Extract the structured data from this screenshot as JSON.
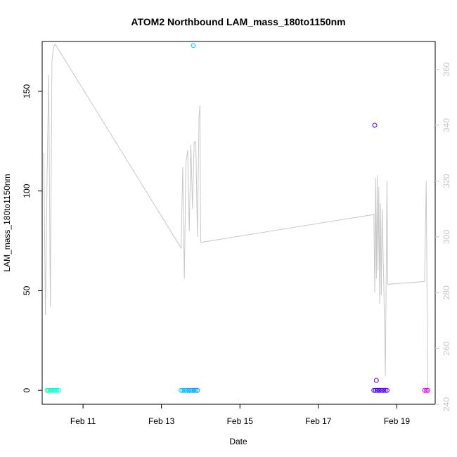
{
  "chart_data": {
    "type": "scatter",
    "title": "ATOM2 Northbound LAM_mass_180to1150nm",
    "xlabel": "Date",
    "ylabel": "LAM_mass_180to1150nm",
    "xlim": [
      "2018-02-09 23:00",
      "2018-02-19 23:30"
    ],
    "ylim": [
      -7,
      175
    ],
    "y2lim": [
      240,
      370
    ],
    "x_ticks": [
      "Feb 11",
      "Feb 13",
      "Feb 15",
      "Feb 17",
      "Feb 19"
    ],
    "y_ticks": [
      0,
      50,
      100,
      150
    ],
    "y2_ticks": [
      240,
      260,
      280,
      300,
      320,
      340,
      360
    ],
    "grid": false,
    "series": [
      {
        "kind": "points",
        "axis": "left",
        "points": [
          {
            "x": "2018-02-10 02:00",
            "y": 0,
            "color": "#00ffb0"
          },
          {
            "x": "2018-02-10 03:00",
            "y": 0,
            "color": "#00ffb8"
          },
          {
            "x": "2018-02-10 04:00",
            "y": 0,
            "color": "#00ffc0"
          },
          {
            "x": "2018-02-10 05:00",
            "y": 0,
            "color": "#00ffc8"
          },
          {
            "x": "2018-02-10 06:00",
            "y": 0,
            "color": "#00ffd0"
          },
          {
            "x": "2018-02-10 07:00",
            "y": 0,
            "color": "#00ffd8"
          },
          {
            "x": "2018-02-10 08:00",
            "y": 0,
            "color": "#00ffe0"
          },
          {
            "x": "2018-02-10 09:00",
            "y": 0,
            "color": "#00ffe8"
          },
          {
            "x": "2018-02-13 12:00",
            "y": 0,
            "color": "#00c8ff"
          },
          {
            "x": "2018-02-13 13:00",
            "y": 0,
            "color": "#00c4ff"
          },
          {
            "x": "2018-02-13 14:00",
            "y": 0,
            "color": "#00c0ff"
          },
          {
            "x": "2018-02-13 15:00",
            "y": 0,
            "color": "#00bcff"
          },
          {
            "x": "2018-02-13 16:00",
            "y": 0,
            "color": "#00b8ff"
          },
          {
            "x": "2018-02-13 17:00",
            "y": 0,
            "color": "#00b4ff"
          },
          {
            "x": "2018-02-13 18:00",
            "y": 0,
            "color": "#00b0ff"
          },
          {
            "x": "2018-02-13 19:00",
            "y": 0,
            "color": "#00acff"
          },
          {
            "x": "2018-02-13 20:00",
            "y": 0,
            "color": "#00a8ff"
          },
          {
            "x": "2018-02-13 21:00",
            "y": 0,
            "color": "#00a4ff"
          },
          {
            "x": "2018-02-13 22:00",
            "y": 0,
            "color": "#00a0ff"
          },
          {
            "x": "2018-02-13 19:30",
            "y": 173,
            "color": "#00c8ff"
          },
          {
            "x": "2018-02-18 10:00",
            "y": 0,
            "color": "#4000ff"
          },
          {
            "x": "2018-02-18 11:00",
            "y": 0,
            "color": "#4400ff"
          },
          {
            "x": "2018-02-18 12:00",
            "y": 0,
            "color": "#4800ff"
          },
          {
            "x": "2018-02-18 13:00",
            "y": 0,
            "color": "#4c00ff"
          },
          {
            "x": "2018-02-18 14:00",
            "y": 0,
            "color": "#5000ff"
          },
          {
            "x": "2018-02-18 15:00",
            "y": 0,
            "color": "#5400ff"
          },
          {
            "x": "2018-02-18 16:00",
            "y": 0,
            "color": "#5800ff"
          },
          {
            "x": "2018-02-18 17:00",
            "y": 0,
            "color": "#5c00ff"
          },
          {
            "x": "2018-02-18 18:00",
            "y": 0,
            "color": "#6000ff"
          },
          {
            "x": "2018-02-18 10:30",
            "y": 133,
            "color": "#5000ff"
          },
          {
            "x": "2018-02-18 11:30",
            "y": 5,
            "color": "#6400ff"
          },
          {
            "x": "2018-02-19 17:00",
            "y": 0,
            "color": "#ff00ff"
          },
          {
            "x": "2018-02-19 18:00",
            "y": 0,
            "color": "#f000ff"
          },
          {
            "x": "2018-02-19 19:00",
            "y": 0,
            "color": "#e000ff"
          }
        ]
      },
      {
        "kind": "line",
        "axis": "right",
        "color": "#c8c8c8",
        "points": [
          {
            "x": "2018-02-10 00:00",
            "y": 330
          },
          {
            "x": "2018-02-10 01:00",
            "y": 272
          },
          {
            "x": "2018-02-10 02:00",
            "y": 322
          },
          {
            "x": "2018-02-10 03:00",
            "y": 358
          },
          {
            "x": "2018-02-10 04:00",
            "y": 275
          },
          {
            "x": "2018-02-10 05:00",
            "y": 363
          },
          {
            "x": "2018-02-10 06:00",
            "y": 368
          },
          {
            "x": "2018-02-10 07:00",
            "y": 369
          },
          {
            "x": "2018-02-13 12:00",
            "y": 296
          },
          {
            "x": "2018-02-13 13:00",
            "y": 325
          },
          {
            "x": "2018-02-13 14:00",
            "y": 285
          },
          {
            "x": "2018-02-13 15:00",
            "y": 327
          },
          {
            "x": "2018-02-13 16:00",
            "y": 331
          },
          {
            "x": "2018-02-13 17:00",
            "y": 302
          },
          {
            "x": "2018-02-13 18:00",
            "y": 333
          },
          {
            "x": "2018-02-13 19:00",
            "y": 310
          },
          {
            "x": "2018-02-13 20:00",
            "y": 334
          },
          {
            "x": "2018-02-13 21:00",
            "y": 334
          },
          {
            "x": "2018-02-13 22:00",
            "y": 300
          },
          {
            "x": "2018-02-13 23:00",
            "y": 343
          },
          {
            "x": "2018-02-13 23:30",
            "y": 347
          },
          {
            "x": "2018-02-14 00:00",
            "y": 298
          },
          {
            "x": "2018-02-18 10:00",
            "y": 308
          },
          {
            "x": "2018-02-18 10:30",
            "y": 280
          },
          {
            "x": "2018-02-18 11:00",
            "y": 321
          },
          {
            "x": "2018-02-18 11:30",
            "y": 285
          },
          {
            "x": "2018-02-18 12:00",
            "y": 322
          },
          {
            "x": "2018-02-18 12:30",
            "y": 288
          },
          {
            "x": "2018-02-18 13:00",
            "y": 318
          },
          {
            "x": "2018-02-18 13:30",
            "y": 276
          },
          {
            "x": "2018-02-18 14:00",
            "y": 312
          },
          {
            "x": "2018-02-18 14:30",
            "y": 279
          },
          {
            "x": "2018-02-18 15:00",
            "y": 310
          },
          {
            "x": "2018-02-18 16:00",
            "y": 284
          },
          {
            "x": "2018-02-18 17:00",
            "y": 250
          },
          {
            "x": "2018-02-18 18:00",
            "y": 320
          },
          {
            "x": "2018-02-18 18:30",
            "y": 283
          },
          {
            "x": "2018-02-19 17:00",
            "y": 284
          },
          {
            "x": "2018-02-19 18:00",
            "y": 320
          },
          {
            "x": "2018-02-19 19:00",
            "y": 244
          }
        ]
      }
    ]
  }
}
